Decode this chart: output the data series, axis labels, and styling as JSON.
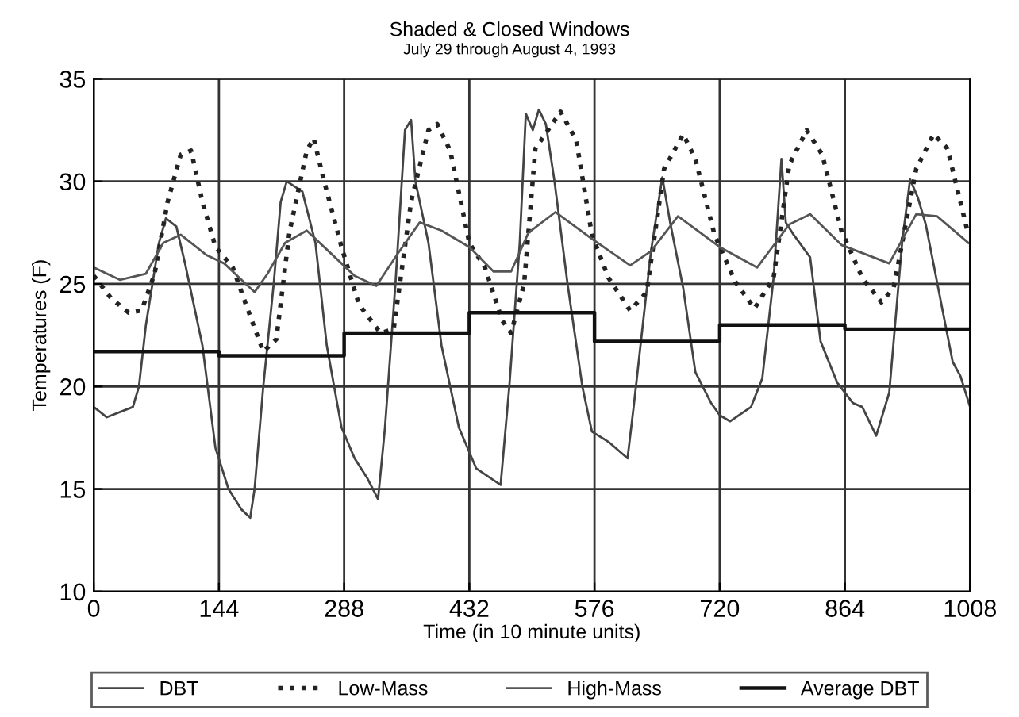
{
  "chart_data": {
    "type": "line",
    "title": "Shaded & Closed Windows",
    "subtitle": "July 29 through August 4, 1993",
    "xlabel": "Time (in 10 minute units)",
    "ylabel": "Temperatures (F)",
    "xlim": [
      0,
      1008
    ],
    "xticks": [
      0,
      144,
      288,
      432,
      576,
      720,
      864,
      1008
    ],
    "ylim": [
      10,
      35
    ],
    "yticks": [
      10,
      15,
      20,
      25,
      30,
      35
    ],
    "grid": true,
    "legend": "bottom",
    "series": [
      {
        "name": "DBT",
        "color": "#444444",
        "line_style": "solid",
        "x": [
          0,
          15,
          45,
          52,
          60,
          75,
          83,
          95,
          105,
          125,
          140,
          155,
          170,
          180,
          185,
          195,
          207,
          215,
          222,
          240,
          255,
          268,
          285,
          300,
          315,
          327,
          335,
          347,
          358,
          365,
          370,
          385,
          400,
          420,
          440,
          468,
          478,
          490,
          497,
          505,
          512,
          520,
          530,
          545,
          562,
          573,
          592,
          614,
          621,
          641,
          654,
          663,
          678,
          692,
          710,
          720,
          732,
          756,
          769,
          782,
          791,
          796,
          805,
          824,
          836,
          855,
          873,
          884,
          900,
          915,
          930,
          939,
          948,
          957,
          975,
          988,
          997,
          1008
        ],
        "values": [
          19,
          18.5,
          19,
          20,
          23,
          27,
          28.2,
          27.8,
          26,
          22,
          17,
          15,
          14,
          13.6,
          15,
          20,
          25,
          29,
          30,
          29.5,
          27,
          22,
          18,
          16.5,
          15.5,
          14.5,
          18,
          25,
          32.5,
          33,
          30,
          27,
          22,
          18,
          16,
          15.2,
          20,
          27,
          33.3,
          32.5,
          33.5,
          32.8,
          30,
          25,
          20,
          17.8,
          17.3,
          16.5,
          19,
          26.6,
          30.2,
          28,
          24.8,
          20.7,
          19.2,
          18.6,
          18.3,
          19,
          20.4,
          25.3,
          31.1,
          28,
          27.4,
          26.3,
          22.2,
          20.2,
          19.2,
          19,
          17.6,
          19.7,
          27.1,
          30.1,
          29.2,
          27.9,
          24,
          21.2,
          20.5,
          19
        ]
      },
      {
        "name": "Low-Mass",
        "color": "#222222",
        "line_style": "dotted",
        "x": [
          0,
          20,
          40,
          55,
          70,
          85,
          100,
          112,
          125,
          140,
          160,
          175,
          195,
          210,
          225,
          245,
          253,
          265,
          285,
          305,
          330,
          345,
          365,
          385,
          395,
          410,
          432,
          450,
          470,
          480,
          495,
          508,
          537,
          555,
          573,
          592,
          617,
          636,
          656,
          678,
          692,
          714,
          738,
          760,
          782,
          800,
          820,
          838,
          860,
          884,
          906,
          920,
          946,
          966,
          982,
          1006
        ],
        "values": [
          25.4,
          24.3,
          23.6,
          23.7,
          25.5,
          29,
          31.3,
          31.5,
          29,
          26.8,
          25.8,
          24,
          21.7,
          22.3,
          27.5,
          31.5,
          32.1,
          30,
          26.8,
          24,
          22.6,
          22.8,
          29,
          32.5,
          32.8,
          31.5,
          27,
          25.8,
          23.2,
          22.6,
          25,
          31.6,
          33.4,
          32,
          27.4,
          25.3,
          23.7,
          24.6,
          30.6,
          32.3,
          31.1,
          27.4,
          25.1,
          23.8,
          25.3,
          30.8,
          32.5,
          31.3,
          27.6,
          25.3,
          24.1,
          24.8,
          30.6,
          32.3,
          31.6,
          27.4
        ]
      },
      {
        "name": "High-Mass",
        "color": "#555555",
        "line_style": "solid",
        "x": [
          0,
          30,
          60,
          80,
          100,
          130,
          150,
          175,
          185,
          200,
          220,
          245,
          270,
          300,
          325,
          350,
          375,
          400,
          432,
          460,
          480,
          500,
          531,
          573,
          617,
          641,
          672,
          720,
          763,
          800,
          824,
          860,
          915,
          946,
          970,
          1006
        ],
        "values": [
          25.8,
          25.2,
          25.5,
          27,
          27.4,
          26.4,
          26,
          25,
          24.6,
          25.5,
          27,
          27.6,
          26.6,
          25.4,
          24.9,
          26.5,
          28,
          27.6,
          26.8,
          25.6,
          25.6,
          27.5,
          28.5,
          27.2,
          25.9,
          26.6,
          28.3,
          26.8,
          25.8,
          27.9,
          28.4,
          26.9,
          26,
          28.4,
          28.3,
          27
        ]
      },
      {
        "name": "Average DBT",
        "type": "step",
        "color": "#111111",
        "line_style": "solid",
        "x": [
          0,
          144,
          288,
          432,
          576,
          720,
          864,
          1008
        ],
        "values": [
          21.7,
          21.5,
          22.6,
          23.6,
          22.2,
          23.0,
          22.8,
          22.8
        ]
      }
    ]
  }
}
